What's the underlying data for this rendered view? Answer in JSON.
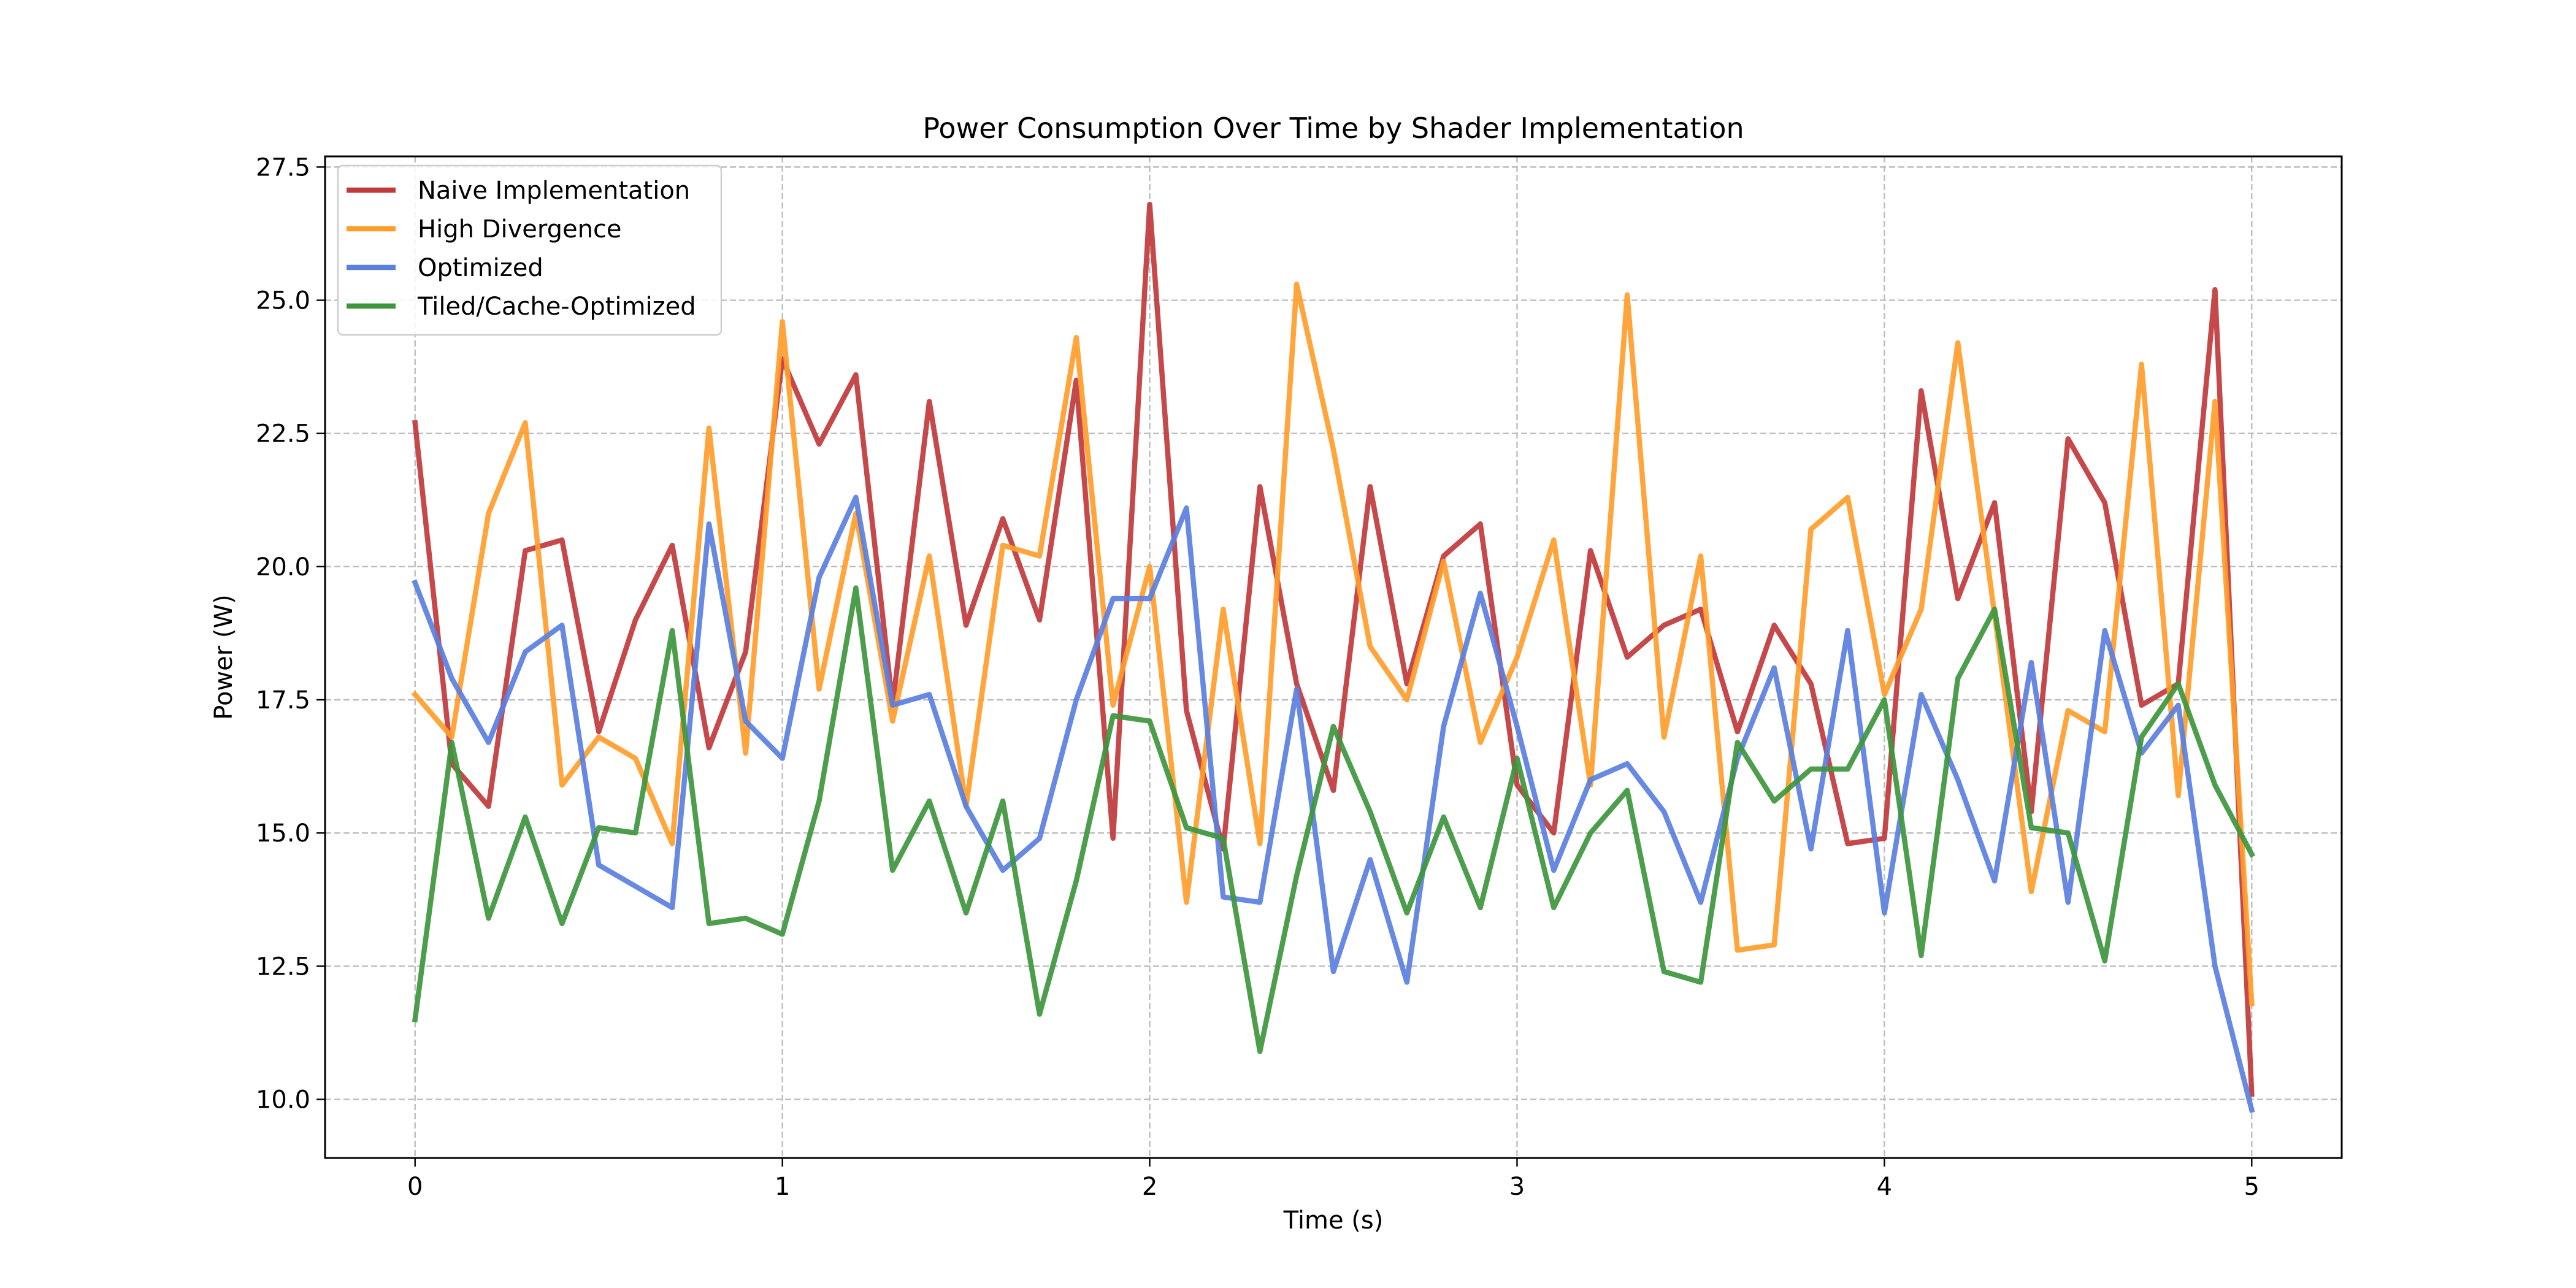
{
  "chart_data": {
    "type": "line",
    "title": "Power Consumption Over Time by Shader Implementation",
    "xlabel": "Time (s)",
    "ylabel": "Power (W)",
    "xlim": [
      -0.245,
      5.245
    ],
    "ylim": [
      8.9,
      27.7
    ],
    "x_ticks": [
      0,
      1,
      2,
      3,
      4,
      5
    ],
    "y_ticks": [
      10.0,
      12.5,
      15.0,
      17.5,
      20.0,
      22.5,
      25.0,
      27.5
    ],
    "x_tick_labels": [
      "0",
      "1",
      "2",
      "3",
      "4",
      "5"
    ],
    "y_tick_labels": [
      "10.0",
      "12.5",
      "15.0",
      "17.5",
      "20.0",
      "22.5",
      "25.0",
      "27.5"
    ],
    "grid": true,
    "legend_position": "top-left",
    "x": [
      0,
      0.1,
      0.2,
      0.3,
      0.4,
      0.5,
      0.6,
      0.7,
      0.8,
      0.9,
      1.0,
      1.1,
      1.2,
      1.3,
      1.4,
      1.5,
      1.6,
      1.7,
      1.8,
      1.9,
      2.0,
      2.1,
      2.2,
      2.3,
      2.4,
      2.5,
      2.6,
      2.7,
      2.8,
      2.9,
      3.0,
      3.1,
      3.2,
      3.3,
      3.4,
      3.5,
      3.6,
      3.7,
      3.8,
      3.9,
      4.0,
      4.1,
      4.2,
      4.3,
      4.4,
      4.5,
      4.6,
      4.7,
      4.8,
      4.9,
      5.0
    ],
    "series": [
      {
        "name": "Naive Implementation",
        "color": "#c0393b",
        "values": [
          22.7,
          16.3,
          15.5,
          20.3,
          20.5,
          16.9,
          19.0,
          20.4,
          16.6,
          18.4,
          23.9,
          22.3,
          23.6,
          17.4,
          23.1,
          18.9,
          20.9,
          19.0,
          23.5,
          14.9,
          26.8,
          17.3,
          14.7,
          21.5,
          17.8,
          15.8,
          21.5,
          17.8,
          20.2,
          20.8,
          15.9,
          15.0,
          20.3,
          18.3,
          18.9,
          19.2,
          16.9,
          18.9,
          17.8,
          14.8,
          14.9,
          23.3,
          19.4,
          21.2,
          15.4,
          22.4,
          21.2,
          17.4,
          17.8,
          25.2,
          10.1
        ]
      },
      {
        "name": "High Divergence",
        "color": "#ff9d2a",
        "values": [
          17.6,
          16.8,
          21.0,
          22.7,
          15.9,
          16.8,
          16.4,
          14.8,
          22.6,
          16.5,
          24.6,
          17.7,
          21.0,
          17.1,
          20.2,
          15.5,
          20.4,
          20.2,
          24.3,
          17.4,
          20.0,
          13.7,
          19.2,
          14.8,
          25.3,
          22.2,
          18.5,
          17.5,
          20.1,
          16.7,
          18.3,
          20.5,
          15.9,
          25.1,
          16.8,
          20.2,
          12.8,
          12.9,
          20.7,
          21.3,
          17.6,
          19.2,
          24.2,
          19.1,
          13.9,
          17.3,
          16.9,
          23.8,
          15.7,
          23.1,
          11.8
        ]
      },
      {
        "name": "Optimized",
        "color": "#5b7fe0",
        "values": [
          19.7,
          17.9,
          16.7,
          18.4,
          18.9,
          14.4,
          14.0,
          13.6,
          20.8,
          17.1,
          16.4,
          19.8,
          21.3,
          17.4,
          17.6,
          15.5,
          14.3,
          14.9,
          17.5,
          19.4,
          19.4,
          21.1,
          13.8,
          13.7,
          17.7,
          12.4,
          14.5,
          12.2,
          17.0,
          19.5,
          17.0,
          14.3,
          16.0,
          16.3,
          15.4,
          13.7,
          16.4,
          18.1,
          14.7,
          18.8,
          13.5,
          17.6,
          16.0,
          14.1,
          18.2,
          13.7,
          18.8,
          16.5,
          17.4,
          12.5,
          9.8
        ]
      },
      {
        "name": "Tiled/Cache-Optimized",
        "color": "#3d963d",
        "values": [
          11.5,
          16.7,
          13.4,
          15.3,
          13.3,
          15.1,
          15.0,
          18.8,
          13.3,
          13.4,
          13.1,
          15.6,
          19.6,
          14.3,
          15.6,
          13.5,
          15.6,
          11.6,
          14.1,
          17.2,
          17.1,
          15.1,
          14.9,
          10.9,
          14.2,
          17.0,
          15.4,
          13.5,
          15.3,
          13.6,
          16.4,
          13.6,
          15.0,
          15.8,
          12.4,
          12.2,
          16.7,
          15.6,
          16.2,
          16.2,
          17.5,
          12.7,
          17.9,
          19.2,
          15.1,
          15.0,
          12.6,
          16.8,
          17.8,
          15.9,
          14.6
        ]
      }
    ]
  }
}
